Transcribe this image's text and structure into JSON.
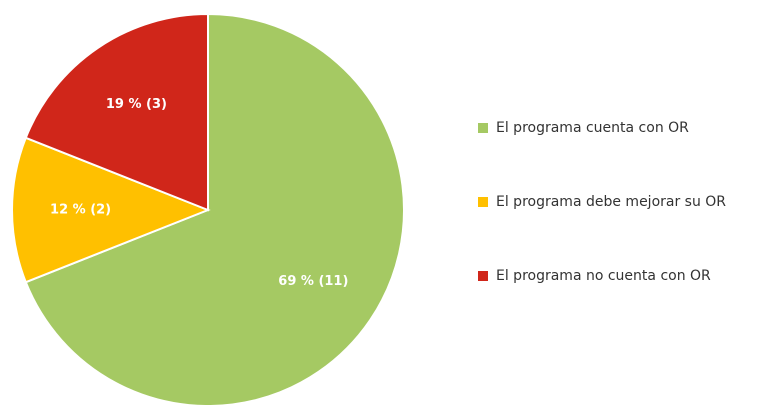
{
  "chart_data": {
    "type": "pie",
    "categories": [
      "El programa cuenta con OR",
      "El programa debe mejorar su OR",
      "El programa no cuenta con OR"
    ],
    "values": [
      69,
      12,
      19
    ],
    "value_labels": [
      "69 % (11)",
      "12 % (2)",
      "19 % (3)"
    ],
    "colors": [
      "#a5c963",
      "#ffc000",
      "#d0261a"
    ],
    "legend": "right"
  }
}
